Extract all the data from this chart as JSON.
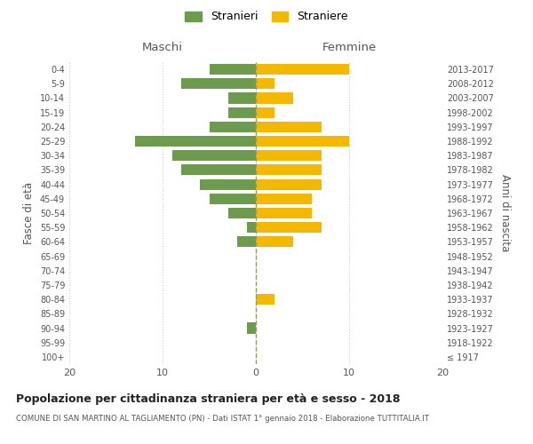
{
  "age_groups": [
    "100+",
    "95-99",
    "90-94",
    "85-89",
    "80-84",
    "75-79",
    "70-74",
    "65-69",
    "60-64",
    "55-59",
    "50-54",
    "45-49",
    "40-44",
    "35-39",
    "30-34",
    "25-29",
    "20-24",
    "15-19",
    "10-14",
    "5-9",
    "0-4"
  ],
  "birth_years": [
    "≤ 1917",
    "1918-1922",
    "1923-1927",
    "1928-1932",
    "1933-1937",
    "1938-1942",
    "1943-1947",
    "1948-1952",
    "1953-1957",
    "1958-1962",
    "1963-1967",
    "1968-1972",
    "1973-1977",
    "1978-1982",
    "1983-1987",
    "1988-1992",
    "1993-1997",
    "1998-2002",
    "2003-2007",
    "2008-2012",
    "2013-2017"
  ],
  "maschi": [
    0,
    0,
    1,
    0,
    0,
    0,
    0,
    0,
    2,
    1,
    3,
    5,
    6,
    8,
    9,
    13,
    5,
    3,
    3,
    8,
    5
  ],
  "femmine": [
    0,
    0,
    0,
    0,
    2,
    0,
    0,
    0,
    4,
    7,
    6,
    6,
    7,
    7,
    7,
    10,
    7,
    2,
    4,
    2,
    10
  ],
  "maschi_color": "#6d9b4e",
  "femmine_color": "#f5b800",
  "xlim": 20,
  "title": "Popolazione per cittadinanza straniera per età e sesso - 2018",
  "subtitle": "COMUNE DI SAN MARTINO AL TAGLIAMENTO (PN) - Dati ISTAT 1° gennaio 2018 - Elaborazione TUTTITALIA.IT",
  "ylabel_left": "Fasce di età",
  "ylabel_right": "Anni di nascita",
  "legend_stranieri": "Stranieri",
  "legend_straniere": "Straniere",
  "maschi_label": "Maschi",
  "femmine_label": "Femmine",
  "background_color": "#ffffff",
  "grid_color": "#cccccc"
}
